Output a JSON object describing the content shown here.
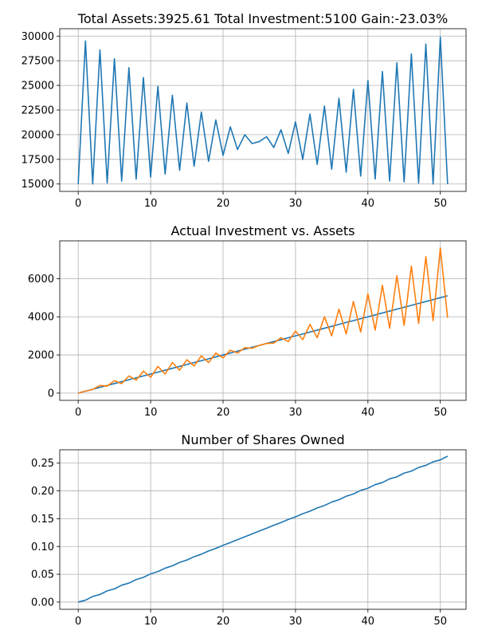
{
  "chart_data": [
    {
      "type": "line",
      "title": "Total Assets:3925.61  Total Investment:5100  Gain:-23.03%",
      "xlabel": "",
      "ylabel": "",
      "xlim": [
        -2.55,
        53.55
      ],
      "ylim": [
        14250,
        30750
      ],
      "grid": true,
      "xticks": [
        0,
        10,
        20,
        30,
        40,
        50
      ],
      "xtick_labels": [
        "0",
        "10",
        "20",
        "30",
        "40",
        "50"
      ],
      "yticks": [
        15000,
        17500,
        20000,
        22500,
        25000,
        27500,
        30000
      ],
      "ytick_labels": [
        "15000",
        "17500",
        "20000",
        "22500",
        "25000",
        "27500",
        "30000"
      ],
      "series": [
        {
          "color": "#1f77b4",
          "x": [
            0,
            1,
            2,
            3,
            4,
            5,
            6,
            7,
            8,
            9,
            10,
            11,
            12,
            13,
            14,
            15,
            16,
            17,
            18,
            19,
            20,
            21,
            22,
            23,
            24,
            25,
            26,
            27,
            28,
            29,
            30,
            31,
            32,
            33,
            34,
            35,
            36,
            37,
            38,
            39,
            40,
            41,
            42,
            43,
            44,
            45,
            46,
            47,
            48,
            49,
            50,
            51
          ],
          "values": [
            15000,
            29500,
            15000,
            28600,
            15100,
            27700,
            15300,
            26800,
            15500,
            25800,
            15700,
            24900,
            16000,
            24000,
            16400,
            23200,
            16800,
            22300,
            17300,
            21500,
            17900,
            20800,
            18500,
            20000,
            19100,
            19300,
            19800,
            18700,
            20500,
            18100,
            21300,
            17500,
            22100,
            17000,
            22900,
            16500,
            23700,
            16200,
            24600,
            15800,
            25500,
            15500,
            26400,
            15300,
            27300,
            15200,
            28200,
            15100,
            29200,
            15000,
            29900,
            15000
          ]
        }
      ]
    },
    {
      "type": "line",
      "title": "Actual Investment vs. Assets",
      "xlabel": "",
      "ylabel": "",
      "xlim": [
        -2.55,
        53.55
      ],
      "ylim": [
        -380,
        7980
      ],
      "grid": true,
      "xticks": [
        0,
        10,
        20,
        30,
        40,
        50
      ],
      "xtick_labels": [
        "0",
        "10",
        "20",
        "30",
        "40",
        "50"
      ],
      "yticks": [
        0,
        2000,
        4000,
        6000
      ],
      "ytick_labels": [
        "0",
        "2000",
        "4000",
        "6000"
      ],
      "series": [
        {
          "color": "#1f77b4",
          "x": [
            0,
            1,
            2,
            3,
            4,
            5,
            6,
            7,
            8,
            9,
            10,
            11,
            12,
            13,
            14,
            15,
            16,
            17,
            18,
            19,
            20,
            21,
            22,
            23,
            24,
            25,
            26,
            27,
            28,
            29,
            30,
            31,
            32,
            33,
            34,
            35,
            36,
            37,
            38,
            39,
            40,
            41,
            42,
            43,
            44,
            45,
            46,
            47,
            48,
            49,
            50,
            51
          ],
          "values": [
            0,
            100,
            200,
            300,
            400,
            500,
            600,
            700,
            800,
            900,
            1000,
            1100,
            1200,
            1300,
            1400,
            1500,
            1600,
            1700,
            1800,
            1900,
            2000,
            2100,
            2200,
            2300,
            2400,
            2500,
            2600,
            2700,
            2800,
            2900,
            3000,
            3100,
            3200,
            3300,
            3400,
            3500,
            3600,
            3700,
            3800,
            3900,
            4000,
            4100,
            4200,
            4300,
            4400,
            4500,
            4600,
            4700,
            4800,
            4900,
            5000,
            5100
          ]
        },
        {
          "color": "#ff7f0e",
          "x": [
            0,
            1,
            2,
            3,
            4,
            5,
            6,
            7,
            8,
            9,
            10,
            11,
            12,
            13,
            14,
            15,
            16,
            17,
            18,
            19,
            20,
            21,
            22,
            23,
            24,
            25,
            26,
            27,
            28,
            29,
            30,
            31,
            32,
            33,
            34,
            35,
            36,
            37,
            38,
            39,
            40,
            41,
            42,
            43,
            44,
            45,
            46,
            47,
            48,
            49,
            50,
            51
          ],
          "values": [
            0,
            100,
            190,
            400,
            370,
            650,
            500,
            900,
            680,
            1150,
            830,
            1400,
            1000,
            1600,
            1200,
            1750,
            1420,
            1950,
            1600,
            2100,
            1850,
            2250,
            2100,
            2380,
            2350,
            2500,
            2600,
            2620,
            2900,
            2700,
            3250,
            2800,
            3600,
            2900,
            4000,
            3000,
            4400,
            3100,
            4800,
            3200,
            5200,
            3300,
            5650,
            3400,
            6150,
            3550,
            6650,
            3650,
            7150,
            3800,
            7600,
            3950
          ]
        }
      ]
    },
    {
      "type": "line",
      "title": "Number of Shares Owned",
      "xlabel": "",
      "ylabel": "",
      "xlim": [
        -2.55,
        53.55
      ],
      "ylim": [
        -0.013,
        0.274
      ],
      "grid": true,
      "xticks": [
        0,
        10,
        20,
        30,
        40,
        50
      ],
      "xtick_labels": [
        "0",
        "10",
        "20",
        "30",
        "40",
        "50"
      ],
      "yticks": [
        0.0,
        0.05,
        0.1,
        0.15,
        0.2,
        0.25
      ],
      "ytick_labels": [
        "0.00",
        "0.05",
        "0.10",
        "0.15",
        "0.20",
        "0.25"
      ],
      "series": [
        {
          "color": "#1f77b4",
          "x": [
            0,
            1,
            2,
            3,
            4,
            5,
            6,
            7,
            8,
            9,
            10,
            11,
            12,
            13,
            14,
            15,
            16,
            17,
            18,
            19,
            20,
            21,
            22,
            23,
            24,
            25,
            26,
            27,
            28,
            29,
            30,
            31,
            32,
            33,
            34,
            35,
            36,
            37,
            38,
            39,
            40,
            41,
            42,
            43,
            44,
            45,
            46,
            47,
            48,
            49,
            50,
            51
          ],
          "values": [
            0,
            0.0034,
            0.0101,
            0.0136,
            0.0202,
            0.0238,
            0.0303,
            0.0341,
            0.0405,
            0.0444,
            0.0508,
            0.0548,
            0.061,
            0.0652,
            0.0713,
            0.0756,
            0.0816,
            0.0861,
            0.0919,
            0.0966,
            0.1022,
            0.107,
            0.1124,
            0.1174,
            0.1226,
            0.1278,
            0.1329,
            0.1382,
            0.1431,
            0.1486,
            0.1533,
            0.159,
            0.1635,
            0.1694,
            0.1738,
            0.1799,
            0.1841,
            0.1904,
            0.1945,
            0.2009,
            0.2048,
            0.2113,
            0.2151,
            0.2217,
            0.2254,
            0.232,
            0.2356,
            0.2422,
            0.2459,
            0.2524,
            0.2558,
            0.2625
          ]
        }
      ]
    }
  ]
}
